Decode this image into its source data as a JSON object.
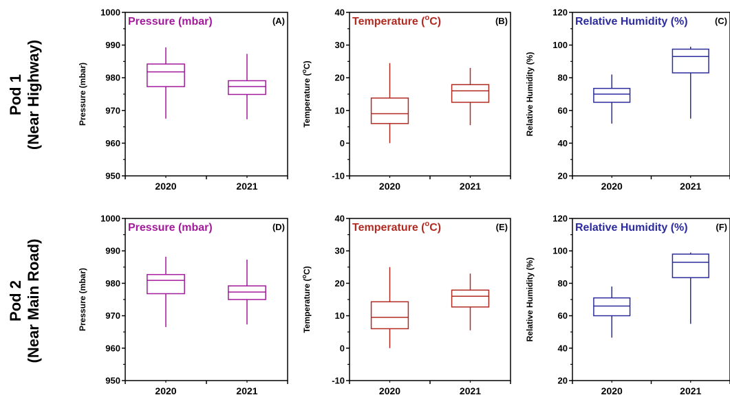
{
  "rows": [
    {
      "line1": "Pod 1",
      "line2": "(Near Highway)"
    },
    {
      "line1": "Pod 2",
      "line2": "(Near Main Road)"
    }
  ],
  "chart_data": [
    {
      "type": "box",
      "tag": "(A)",
      "title": "Pressure (mbar)",
      "ylabel": "Pressure (mbar)",
      "color": "#a3199b",
      "ylim": [
        950,
        1000
      ],
      "yticks": [
        950,
        960,
        970,
        980,
        990,
        1000
      ],
      "categories": [
        "2020",
        "2021"
      ],
      "boxes": [
        {
          "min": 967.5,
          "q1": 977.3,
          "median": 981.8,
          "q3": 984.2,
          "max": 989.3
        },
        {
          "min": 967.3,
          "q1": 974.9,
          "median": 977.3,
          "q3": 979.1,
          "max": 987.3
        }
      ]
    },
    {
      "type": "box",
      "tag": "(B)",
      "title_pre": "Temperature (",
      "title_sup": "o",
      "title_post": "C)",
      "ylabel_pre": "Temperature (",
      "ylabel_sup": "o",
      "ylabel_post": "C)",
      "color": "#b02a22",
      "ylim": [
        -10,
        40
      ],
      "yticks": [
        -10,
        0,
        10,
        20,
        30,
        40
      ],
      "categories": [
        "2020",
        "2021"
      ],
      "boxes": [
        {
          "min": 0,
          "q1": 6,
          "median": 9,
          "q3": 13.8,
          "max": 24.5
        },
        {
          "min": 5.5,
          "q1": 12.5,
          "median": 16,
          "q3": 17.9,
          "max": 23
        }
      ]
    },
    {
      "type": "box",
      "tag": "(C)",
      "title": "Relative Humidity (%)",
      "ylabel": "Relative Humidity (%)",
      "color": "#2b2b9e",
      "ylim": [
        20,
        120
      ],
      "yticks": [
        20,
        40,
        60,
        80,
        100,
        120
      ],
      "categories": [
        "2020",
        "2021"
      ],
      "boxes": [
        {
          "min": 52,
          "q1": 65,
          "median": 70,
          "q3": 73.5,
          "max": 82
        },
        {
          "min": 55,
          "q1": 83,
          "median": 93,
          "q3": 97.5,
          "max": 99
        }
      ]
    },
    {
      "type": "box",
      "tag": "(D)",
      "title": "Pressure (mbar)",
      "ylabel": "Pressure (mbar)",
      "color": "#a3199b",
      "ylim": [
        950,
        1000
      ],
      "yticks": [
        950,
        960,
        970,
        980,
        990,
        1000
      ],
      "categories": [
        "2020",
        "2021"
      ],
      "boxes": [
        {
          "min": 966.5,
          "q1": 976.8,
          "median": 980.9,
          "q3": 982.7,
          "max": 988.2
        },
        {
          "min": 967.3,
          "q1": 975,
          "median": 977.3,
          "q3": 979.2,
          "max": 987.3
        }
      ]
    },
    {
      "type": "box",
      "tag": "(E)",
      "title_pre": "Temperature (",
      "title_sup": "o",
      "title_post": "C)",
      "ylabel_pre": "Temperature (",
      "ylabel_sup": "o",
      "ylabel_post": "C)",
      "color": "#b02a22",
      "ylim": [
        -10,
        40
      ],
      "yticks": [
        -10,
        0,
        10,
        20,
        30,
        40
      ],
      "categories": [
        "2020",
        "2021"
      ],
      "boxes": [
        {
          "min": 0,
          "q1": 6,
          "median": 9.5,
          "q3": 14.3,
          "max": 25
        },
        {
          "min": 5.5,
          "q1": 12.7,
          "median": 16,
          "q3": 17.9,
          "max": 23
        }
      ]
    },
    {
      "type": "box",
      "tag": "(F)",
      "title": "Relative Humidity (%)",
      "ylabel": "Relative Humidity (%)",
      "color": "#2b2b9e",
      "ylim": [
        20,
        120
      ],
      "yticks": [
        20,
        40,
        60,
        80,
        100,
        120
      ],
      "categories": [
        "2020",
        "2021"
      ],
      "boxes": [
        {
          "min": 46.5,
          "q1": 60,
          "median": 66,
          "q3": 71,
          "max": 78
        },
        {
          "min": 55,
          "q1": 83.5,
          "median": 93,
          "q3": 98,
          "max": 99
        }
      ]
    }
  ]
}
